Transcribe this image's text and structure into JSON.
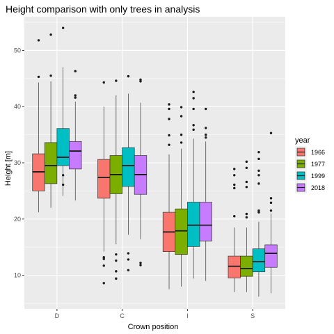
{
  "chart_data": {
    "type": "boxplot",
    "title": "Height comparison with only trees in analysis",
    "xlabel": "Crown position",
    "ylabel": "Height [m]",
    "categories": [
      "D",
      "C",
      "I",
      "S"
    ],
    "yticks": [
      10,
      20,
      30,
      40,
      50
    ],
    "ylim": [
      4,
      56
    ],
    "grid": true,
    "legend": {
      "title": "year",
      "position": "right",
      "entries": [
        "1966",
        "1977",
        "1999",
        "2018"
      ]
    },
    "colors": [
      "#F8766D",
      "#7CAE00",
      "#00BFC4",
      "#C77CFF"
    ],
    "series": [
      {
        "name": "1966",
        "boxes": [
          {
            "category": "D",
            "lower_whisker": 21.2,
            "q1": 25.0,
            "median": 28.4,
            "q3": 31.6,
            "upper_whisker": 44.3,
            "outliers": [
              45.3,
              51.8
            ]
          },
          {
            "category": "C",
            "lower_whisker": 14.2,
            "q1": 23.7,
            "median": 27.4,
            "q3": 30.6,
            "upper_whisker": 40.0,
            "outliers": [
              44.3,
              13.2,
              12.9,
              11.7,
              8.6
            ]
          },
          {
            "category": "I",
            "lower_whisker": 7.5,
            "q1": 14.2,
            "median": 17.7,
            "q3": 21.2,
            "upper_whisker": 31.5,
            "outliers": [
              33.2,
              34.9,
              37.8,
              39.6,
              40.4
            ]
          },
          {
            "category": "S",
            "lower_whisker": 7.0,
            "q1": 9.5,
            "median": 11.6,
            "q3": 13.4,
            "upper_whisker": 18.5,
            "outliers": [
              20.5,
              25.5,
              26.1,
              27.8,
              28.9
            ]
          }
        ]
      },
      {
        "name": "1977",
        "boxes": [
          {
            "category": "D",
            "lower_whisker": 22.0,
            "q1": 26.3,
            "median": 29.5,
            "q3": 33.6,
            "upper_whisker": 44.5,
            "outliers": [
              45.5,
              52.8
            ]
          },
          {
            "category": "C",
            "lower_whisker": 15.5,
            "q1": 24.5,
            "median": 27.9,
            "q3": 31.3,
            "upper_whisker": 42.0,
            "outliers": [
              44.6,
              13.7,
              12.6,
              10.7,
              9.4
            ]
          },
          {
            "category": "I",
            "lower_whisker": 8.0,
            "q1": 13.7,
            "median": 17.9,
            "q3": 21.8,
            "upper_whisker": 32.5,
            "outliers": [
              33.6,
              35.0,
              38.3,
              39.9
            ]
          },
          {
            "category": "S",
            "lower_whisker": 7.0,
            "q1": 9.8,
            "median": 11.2,
            "q3": 13.4,
            "upper_whisker": 18.5,
            "outliers": [
              20.3,
              20.9,
              25.7,
              26.6,
              29.1,
              30.2
            ]
          }
        ]
      },
      {
        "name": "1999",
        "boxes": [
          {
            "category": "D",
            "lower_whisker": 24.1,
            "q1": 29.5,
            "median": 31.0,
            "q3": 36.1,
            "upper_whisker": 47.0,
            "outliers": [
              54.0,
              27.8,
              26.1
            ]
          },
          {
            "category": "C",
            "lower_whisker": 17.2,
            "q1": 25.8,
            "median": 29.5,
            "q3": 32.7,
            "upper_whisker": 42.3,
            "outliers": [
              45.4,
              13.9,
              12.8,
              10.9
            ]
          },
          {
            "category": "I",
            "lower_whisker": 9.4,
            "q1": 15.1,
            "median": 18.9,
            "q3": 23.0,
            "upper_whisker": 34.3,
            "outliers": [
              35.9,
              36.7,
              39.6,
              41.5,
              42.6
            ]
          },
          {
            "category": "S",
            "lower_whisker": 6.2,
            "q1": 10.6,
            "median": 12.4,
            "q3": 14.7,
            "upper_whisker": 19.5,
            "outliers": [
              21.2,
              21.5,
              26.3,
              27.8,
              28.6,
              30.7,
              31.9
            ]
          }
        ]
      },
      {
        "name": "2018",
        "boxes": [
          {
            "category": "D",
            "lower_whisker": 23.3,
            "q1": 28.9,
            "median": 32.1,
            "q3": 33.8,
            "upper_whisker": 40.9,
            "outliers": [
              41.6,
              42.0,
              46.3
            ]
          },
          {
            "category": "C",
            "lower_whisker": 16.4,
            "q1": 24.4,
            "median": 27.9,
            "q3": 31.3,
            "upper_whisker": 40.7,
            "outliers": [
              44.5,
              44.8,
              12.2,
              11.8
            ]
          },
          {
            "category": "I",
            "lower_whisker": 9.0,
            "q1": 16.1,
            "median": 18.9,
            "q3": 23.0,
            "upper_whisker": 33.8,
            "outliers": [
              34.5,
              35.0,
              36.2,
              39.6
            ]
          },
          {
            "category": "S",
            "lower_whisker": 6.8,
            "q1": 11.4,
            "median": 13.9,
            "q3": 15.4,
            "upper_whisker": 21.0,
            "outliers": [
              21.5,
              22.9,
              23.7,
              35.3
            ]
          }
        ]
      }
    ]
  }
}
